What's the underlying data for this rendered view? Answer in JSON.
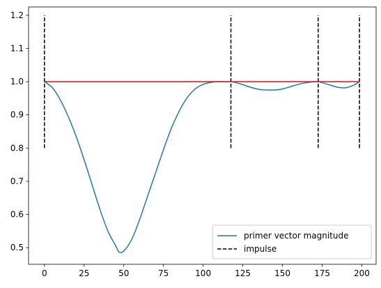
{
  "chart_data": {
    "type": "line",
    "title": "",
    "xlabel": "",
    "ylabel": "",
    "xlim": [
      -10,
      209
    ],
    "ylim": [
      0.45,
      1.225
    ],
    "xticks": [
      0,
      25,
      50,
      75,
      100,
      125,
      150,
      175,
      200
    ],
    "yticks": [
      0.5,
      0.6,
      0.7,
      0.8,
      0.9,
      1.0,
      1.1,
      1.2
    ],
    "grid": false,
    "legend": "lower-right",
    "series": [
      {
        "name": "primer vector magnitude",
        "style": "solid",
        "color": "#1f77b4",
        "x": [
          0,
          5,
          10,
          15,
          20,
          25,
          30,
          35,
          40,
          45,
          47,
          50,
          55,
          60,
          65,
          70,
          75,
          80,
          85,
          90,
          95,
          100,
          105,
          110,
          115,
          117.5,
          120,
          125,
          130,
          135,
          140,
          145,
          150,
          155,
          160,
          165,
          170,
          172.5,
          175,
          180,
          185,
          190,
          195,
          198.5
        ],
        "y": [
          1.0,
          0.982,
          0.945,
          0.895,
          0.835,
          0.765,
          0.69,
          0.615,
          0.55,
          0.505,
          0.487,
          0.49,
          0.525,
          0.585,
          0.655,
          0.725,
          0.795,
          0.86,
          0.912,
          0.952,
          0.978,
          0.992,
          0.998,
          1.0,
          1.0,
          1.0,
          0.998,
          0.991,
          0.983,
          0.977,
          0.975,
          0.975,
          0.978,
          0.985,
          0.992,
          0.997,
          1.0,
          1.0,
          0.997,
          0.99,
          0.983,
          0.982,
          0.99,
          1.0
        ]
      },
      {
        "name": "impulse",
        "style": "dashed",
        "color": "#000000",
        "impulse_x": [
          0,
          117.5,
          172.5,
          198.5
        ],
        "impulse_y": [
          0.8,
          1.2
        ]
      }
    ],
    "reference_line": {
      "y": 1.0,
      "x": [
        0,
        198.5
      ],
      "color": "#ff0000"
    }
  }
}
